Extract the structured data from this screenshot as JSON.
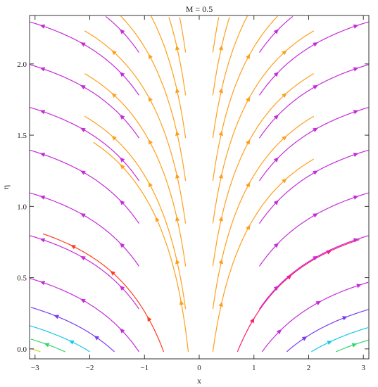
{
  "chart_data": {
    "type": "streamplot",
    "title": "M = 0.5",
    "xlabel": "x",
    "ylabel": "η",
    "xlim": [
      -3.1,
      3.1
    ],
    "ylim": [
      -0.07,
      2.34
    ],
    "x_ticks": [
      {
        "value": -3,
        "label": "−3"
      },
      {
        "value": -2,
        "label": "−2"
      },
      {
        "value": -1,
        "label": "−1"
      },
      {
        "value": 0,
        "label": "0"
      },
      {
        "value": 1,
        "label": "1"
      },
      {
        "value": 2,
        "label": "2"
      },
      {
        "value": 3,
        "label": "3"
      }
    ],
    "y_ticks": [
      {
        "value": 0.0,
        "label": "0.0"
      },
      {
        "value": 0.5,
        "label": "0.5"
      },
      {
        "value": 1.0,
        "label": "1.0"
      },
      {
        "value": 1.5,
        "label": "1.5"
      },
      {
        "value": 2.0,
        "label": "2.0"
      }
    ],
    "grid": false,
    "legend": "none",
    "color_scale": [
      "#ff9f1c",
      "#ff3b1f",
      "#ff1a6b",
      "#c62bd9",
      "#7b3cf0",
      "#2b7cf5",
      "#14c9e6",
      "#33d66b",
      "#c8d81a",
      "#f2d40c"
    ]
  }
}
